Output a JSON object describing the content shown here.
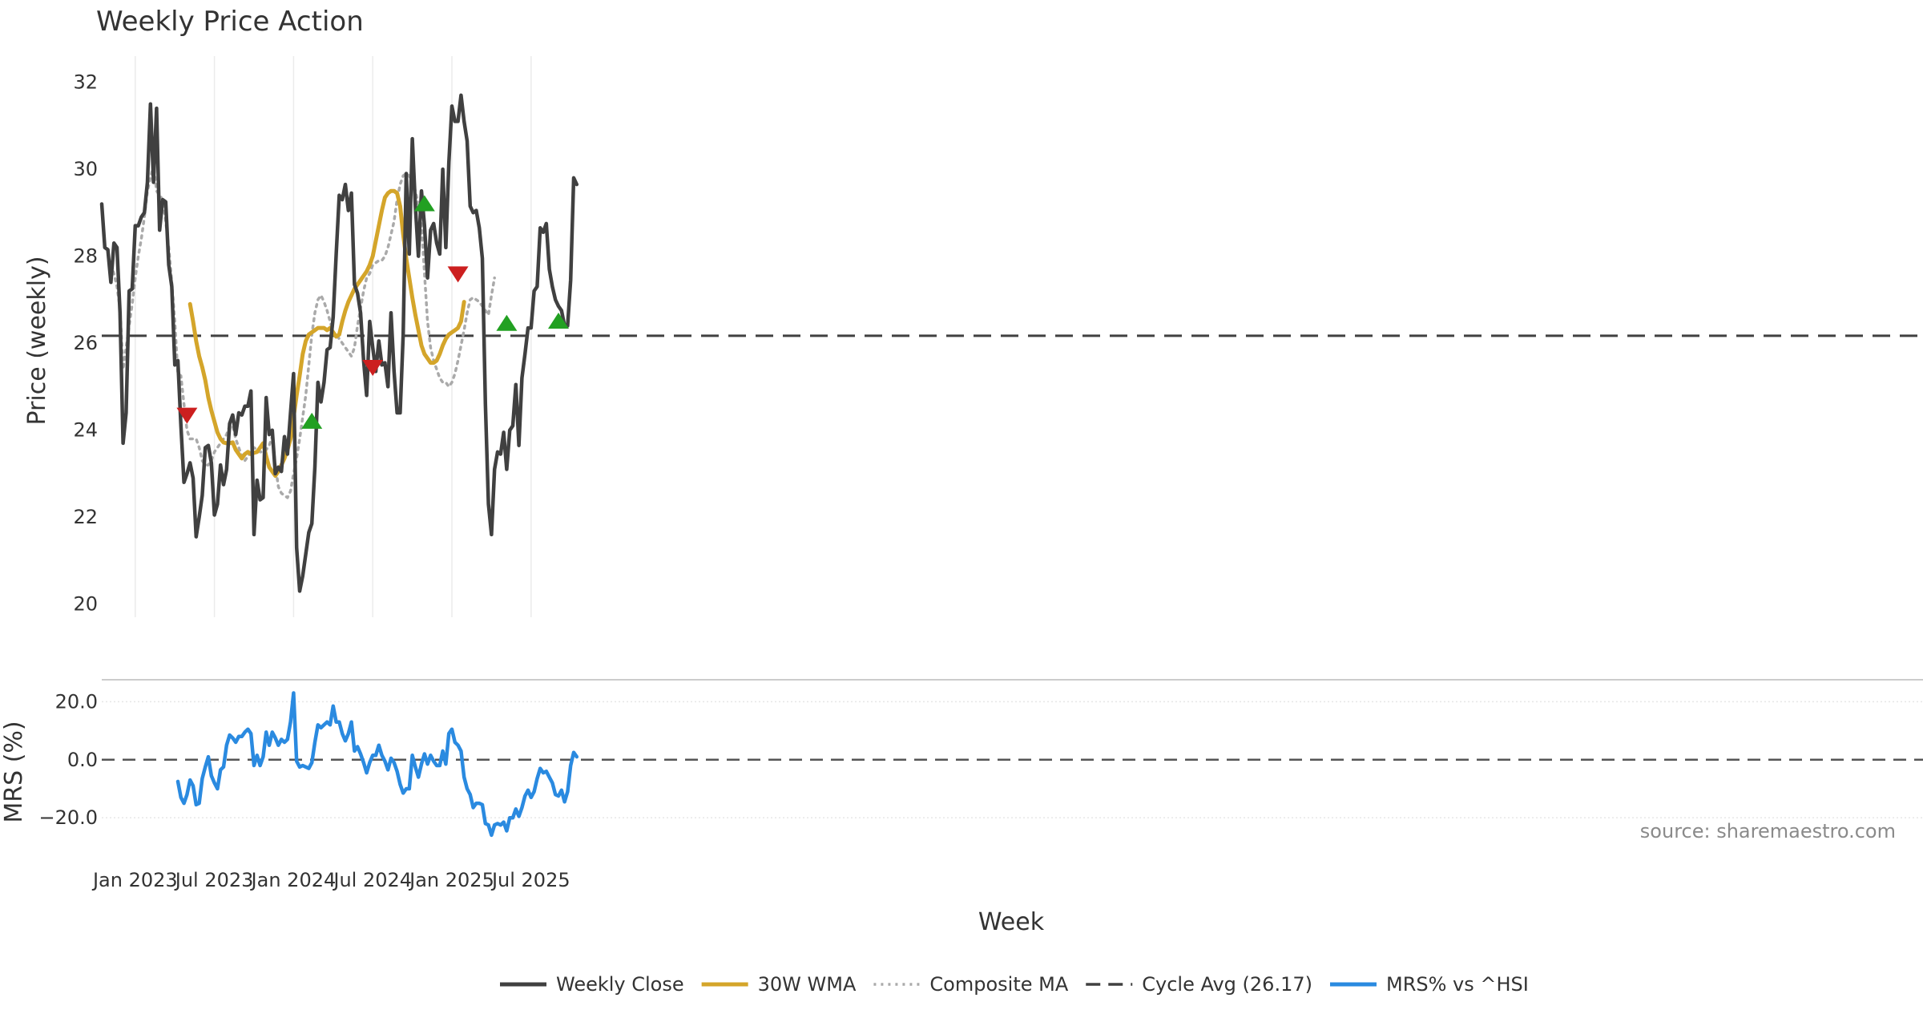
{
  "chart_data": {
    "type": "line",
    "title": "Weekly Price Action",
    "xlabel": "Week",
    "source": "source: sharemaestro.com",
    "x_ticks": [
      {
        "label": "Jan 2023",
        "week": 11
      },
      {
        "label": "Jul 2023",
        "week": 37
      },
      {
        "label": "Jan 2024",
        "week": 63
      },
      {
        "label": "Jul 2024",
        "week": 89
      },
      {
        "label": "Jan 2025",
        "week": 115
      },
      {
        "label": "Jul 2025",
        "week": 141
      }
    ],
    "week_range": [
      0,
      156
    ],
    "price_panel": {
      "ylabel": "Price (weekly)",
      "ylim": [
        19.7,
        32.6
      ],
      "yticks": [
        20,
        22,
        24,
        26,
        28,
        30,
        32
      ],
      "cycle_avg": 26.17,
      "series": [
        {
          "name": "Weekly Close",
          "color": "#404040",
          "x_start": 0,
          "values": [
            29.2,
            28.2,
            28.15,
            27.4,
            28.3,
            28.2,
            26.7,
            23.7,
            24.4,
            27.2,
            27.25,
            28.7,
            28.7,
            28.9,
            29.0,
            29.7,
            31.5,
            29.7,
            31.4,
            28.6,
            29.3,
            29.25,
            27.8,
            27.3,
            25.5,
            25.6,
            24.1,
            22.8,
            23.0,
            23.25,
            22.9,
            21.55,
            22.0,
            22.5,
            23.6,
            23.65,
            23.25,
            22.05,
            22.3,
            23.2,
            22.75,
            23.1,
            24.15,
            24.35,
            23.9,
            24.4,
            24.35,
            24.55,
            24.55,
            24.9,
            21.6,
            22.85,
            22.4,
            22.45,
            24.75,
            23.9,
            24.0,
            23.0,
            23.15,
            23.05,
            23.85,
            23.45,
            24.4,
            25.3,
            21.3,
            20.3,
            20.65,
            21.15,
            21.65,
            21.85,
            23.15,
            25.1,
            24.65,
            25.1,
            25.85,
            25.9,
            26.6,
            28.05,
            29.4,
            29.3,
            29.65,
            29.05,
            29.45,
            27.35,
            27.15,
            26.7,
            25.6,
            24.8,
            26.5,
            25.9,
            25.35,
            26.05,
            25.5,
            25.55,
            25.0,
            26.7,
            25.35,
            24.4,
            24.4,
            26.2,
            29.9,
            28.05,
            30.7,
            29.15,
            28.0,
            29.5,
            28.7,
            27.5,
            28.6,
            28.75,
            28.3,
            28.05,
            30.0,
            28.2,
            30.15,
            31.45,
            31.1,
            31.1,
            31.7,
            31.1,
            30.65,
            29.15,
            29.0,
            29.05,
            28.65,
            27.95,
            24.6,
            22.3,
            21.6,
            23.1,
            23.5,
            23.45,
            23.95,
            23.1,
            24.0,
            24.1,
            25.05,
            23.65,
            25.2,
            25.75,
            26.35,
            26.35,
            27.2,
            27.3,
            28.65,
            28.55,
            28.75,
            27.7,
            27.3,
            27.0,
            26.85,
            26.75,
            26.4,
            26.4,
            27.45,
            29.8,
            29.65
          ]
        },
        {
          "name": "30W WMA",
          "color": "#d4a52a",
          "x_start": 29,
          "values": [
            26.9,
            26.5,
            26.05,
            25.7,
            25.45,
            25.15,
            24.75,
            24.45,
            24.2,
            23.95,
            23.8,
            23.72,
            23.7,
            23.7,
            23.72,
            23.55,
            23.45,
            23.35,
            23.45,
            23.5,
            23.45,
            23.48,
            23.5,
            23.6,
            23.7,
            23.4,
            23.15,
            23.05,
            22.95,
            23.05,
            23.2,
            23.35,
            23.55,
            23.8,
            24.3,
            24.8,
            25.25,
            25.75,
            26.05,
            26.2,
            26.25,
            26.3,
            26.35,
            26.35,
            26.35,
            26.3,
            26.35,
            26.25,
            26.15,
            26.2,
            26.5,
            26.75,
            26.95,
            27.1,
            27.25,
            27.35,
            27.45,
            27.55,
            27.65,
            27.8,
            28.0,
            28.35,
            28.7,
            29.05,
            29.35,
            29.45,
            29.5,
            29.5,
            29.45,
            29.15,
            28.5,
            27.95,
            27.5,
            27.05,
            26.65,
            26.3,
            25.95,
            25.75,
            25.65,
            25.55,
            25.55,
            25.6,
            25.75,
            25.95,
            26.1,
            26.2,
            26.25,
            26.3,
            26.35,
            26.5,
            26.95
          ]
        },
        {
          "name": "Composite MA",
          "color": "#aaaaaa",
          "x_start": 3,
          "values": [
            27.8,
            27.6,
            27.3,
            26.8,
            25.4,
            25.9,
            26.4,
            26.9,
            27.5,
            28.0,
            28.4,
            28.9,
            29.5,
            29.8,
            30.1,
            29.5,
            29.4,
            29.3,
            28.8,
            28.2,
            27.4,
            26.5,
            25.3,
            25.25,
            24.6,
            24.0,
            23.8,
            23.8,
            23.8,
            23.6,
            23.3,
            23.2,
            23.2,
            23.3,
            23.5,
            23.6,
            23.7,
            23.8,
            23.9,
            24.1,
            24.1,
            23.8,
            23.6,
            23.4,
            23.3,
            23.4,
            23.5,
            23.6,
            23.55,
            23.5,
            23.5,
            23.55,
            23.65,
            23.85,
            23.2,
            22.7,
            22.55,
            22.5,
            22.45,
            22.6,
            23.0,
            23.35,
            23.8,
            24.3,
            24.8,
            25.5,
            26.2,
            26.7,
            27.0,
            27.1,
            26.95,
            26.75,
            26.5,
            26.25,
            26.2,
            26.1,
            26.0,
            25.9,
            25.8,
            25.7,
            25.9,
            26.4,
            26.8,
            27.2,
            27.5,
            27.6,
            27.8,
            27.85,
            27.9,
            27.9,
            28.0,
            28.2,
            28.5,
            28.8,
            29.3,
            29.65,
            29.85,
            29.9,
            29.85,
            29.7,
            29.5,
            29.2,
            28.7,
            27.6,
            26.5,
            25.9,
            25.6,
            25.4,
            25.2,
            25.1,
            25.1,
            25.0,
            25.1,
            25.3,
            25.6,
            25.95,
            26.3,
            26.7,
            27.0,
            27.05,
            27.0,
            26.95,
            26.85,
            26.75,
            26.65,
            27.1,
            27.5
          ]
        }
      ],
      "buy_signals": [
        {
          "week": 69,
          "value": 24.2
        },
        {
          "week": 106,
          "value": 29.2
        },
        {
          "week": 133,
          "value": 26.45
        },
        {
          "week": 150,
          "value": 26.5
        }
      ],
      "sell_signals": [
        {
          "week": 28,
          "value": 24.35
        },
        {
          "week": 89,
          "value": 25.45
        },
        {
          "week": 117,
          "value": 27.6
        }
      ]
    },
    "mrs_panel": {
      "ylabel": "MRS (%)",
      "ylim": [
        -31,
        27
      ],
      "yticks": [
        20.0,
        0.0,
        -20.0
      ],
      "ytick_labels": [
        "20.0",
        "0.0",
        "−20.0"
      ],
      "reference": 0,
      "series": [
        {
          "name": "MRS% vs ^HSI",
          "color": "#2a8ae0",
          "x_start": 25,
          "values": [
            -7.5,
            -13,
            -15,
            -12,
            -7,
            -9,
            -15.5,
            -15,
            -6.5,
            -2.5,
            1,
            -5.5,
            -8,
            -10,
            -3.5,
            -2.5,
            5,
            8.5,
            7.5,
            6,
            8,
            8,
            9.5,
            10.5,
            9,
            -2,
            1.5,
            -2,
            1,
            9.5,
            5,
            9.5,
            7.5,
            5,
            7,
            6,
            7,
            13,
            23,
            -0.5,
            -2.5,
            -2,
            -2.5,
            -3,
            -1,
            6,
            12,
            11,
            12,
            13,
            12,
            18.5,
            13,
            13,
            9,
            6.5,
            9,
            13,
            3,
            4.5,
            2,
            -1,
            -4.5,
            -1,
            1.5,
            1.5,
            5,
            1.5,
            -0.5,
            -3.5,
            0.5,
            -1,
            -4,
            -8.5,
            -11.5,
            -10,
            -10,
            1.5,
            -2.5,
            -6,
            -1.5,
            2,
            -1.5,
            1.5,
            -0.5,
            -2,
            -2,
            3,
            -1.5,
            9,
            10.5,
            6,
            5,
            3,
            -6,
            -10,
            -12,
            -16.5,
            -15,
            -15,
            -15.5,
            -22,
            -22.5,
            -26,
            -22.5,
            -22,
            -22.5,
            -21.5,
            -24.5,
            -20,
            -20,
            -17,
            -19.5,
            -16.5,
            -12.5,
            -10.5,
            -13,
            -11,
            -6.5,
            -3,
            -4.5,
            -4,
            -6,
            -8,
            -12,
            -12.5,
            -10.5,
            -14.5,
            -11,
            -2,
            2.5,
            1
          ]
        }
      ]
    },
    "legend": [
      {
        "label": "Weekly Close",
        "color": "#404040",
        "style": "solid"
      },
      {
        "label": "30W WMA",
        "color": "#d4a52a",
        "style": "solid"
      },
      {
        "label": "Composite MA",
        "color": "#aaaaaa",
        "style": "dotted"
      },
      {
        "label": "Cycle Avg (26.17)",
        "color": "#404040",
        "style": "dashed"
      },
      {
        "label": "MRS% vs ^HSI",
        "color": "#2a8ae0",
        "style": "solid"
      }
    ],
    "buy_color": "#22a022",
    "sell_color": "#cc1f1f"
  }
}
